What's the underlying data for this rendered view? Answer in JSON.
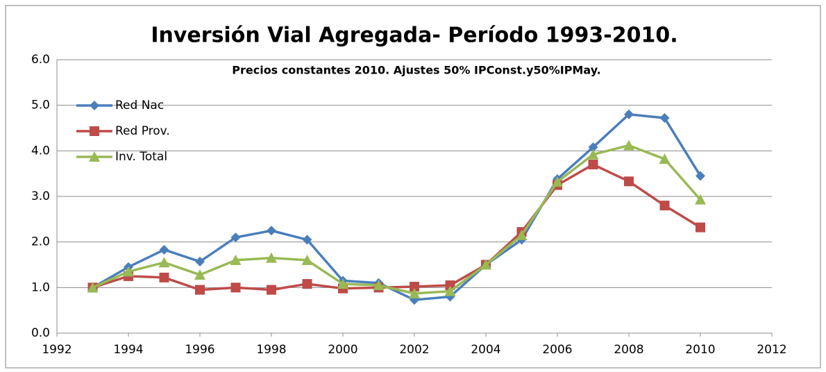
{
  "chart_data": {
    "type": "line",
    "title": "Inversión Vial Agregada- Período 1993-2010.",
    "subtitle": "Precios constantes 2010. Ajustes 50% IPConst.y50%IPMay.",
    "x": [
      1993,
      1994,
      1995,
      1996,
      1997,
      1998,
      1999,
      2000,
      2001,
      2002,
      2003,
      2004,
      2005,
      2006,
      2007,
      2008,
      2009,
      2010
    ],
    "series": [
      {
        "name": "Red Nac",
        "color": "#4a7ebb",
        "marker": "diamond",
        "values": [
          1.0,
          1.45,
          1.83,
          1.57,
          2.1,
          2.25,
          2.05,
          1.15,
          1.1,
          0.73,
          0.8,
          1.5,
          2.05,
          3.38,
          4.08,
          4.8,
          4.72,
          3.45
        ]
      },
      {
        "name": "Red Prov.",
        "color": "#be4b48",
        "marker": "square",
        "values": [
          1.0,
          1.25,
          1.22,
          0.95,
          1.0,
          0.95,
          1.08,
          0.98,
          1.0,
          1.02,
          1.05,
          1.5,
          2.22,
          3.25,
          3.7,
          3.33,
          2.8,
          2.32
        ]
      },
      {
        "name": "Inv. Total",
        "color": "#98b954",
        "marker": "triangle",
        "values": [
          1.0,
          1.35,
          1.55,
          1.28,
          1.6,
          1.65,
          1.6,
          1.08,
          1.05,
          0.87,
          0.92,
          1.5,
          2.15,
          3.32,
          3.92,
          4.12,
          3.82,
          2.93
        ]
      }
    ],
    "xlim": [
      1992,
      2012
    ],
    "xticks": [
      1992,
      1994,
      1996,
      1998,
      2000,
      2002,
      2004,
      2006,
      2008,
      2010,
      2012
    ],
    "ylim": [
      0,
      6
    ],
    "yticks": [
      {
        "value": 0,
        "label": "0.0"
      },
      {
        "value": 1,
        "label": "1.0"
      },
      {
        "value": 2,
        "label": "2.0"
      },
      {
        "value": 3,
        "label": "3.0"
      },
      {
        "value": 4,
        "label": "4.0"
      },
      {
        "value": 5,
        "label": "5.0"
      },
      {
        "value": 6,
        "label": "6.0"
      }
    ],
    "grid": true,
    "legend": "upper left"
  }
}
